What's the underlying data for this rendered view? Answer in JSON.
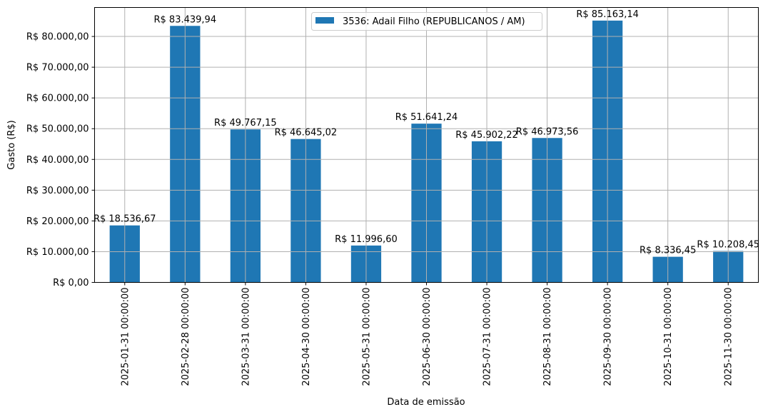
{
  "chart_data": {
    "type": "bar",
    "xlabel": "Data de emissão",
    "ylabel": "Gasto (R$)",
    "categories": [
      "2025-01-31 00:00:00",
      "2025-02-28 00:00:00",
      "2025-03-31 00:00:00",
      "2025-04-30 00:00:00",
      "2025-05-31 00:00:00",
      "2025-06-30 00:00:00",
      "2025-07-31 00:00:00",
      "2025-08-31 00:00:00",
      "2025-09-30 00:00:00",
      "2025-10-31 00:00:00",
      "2025-11-30 00:00:00"
    ],
    "series": [
      {
        "name": "3536: Adail Filho (REPUBLICANOS / AM)",
        "color": "#1f77b4",
        "values": [
          18536.67,
          83439.94,
          49767.15,
          46645.02,
          11996.6,
          51641.24,
          45902.22,
          46973.56,
          85163.14,
          8336.45,
          10208.45
        ],
        "data_labels": [
          "R$ 18.536,67",
          "R$ 83.439,94",
          "R$ 49.767,15",
          "R$ 46.645,02",
          "R$ 11.996,60",
          "R$ 51.641,24",
          "R$ 45.902,22",
          "R$ 46.973,56",
          "R$ 85.163,14",
          "R$ 8.336,45",
          "R$ 10.208,45"
        ]
      }
    ],
    "yticks": [
      0,
      10000,
      20000,
      30000,
      40000,
      50000,
      60000,
      70000,
      80000
    ],
    "ytick_labels": [
      "R$ 0,00",
      "R$ 10.000,00",
      "R$ 20.000,00",
      "R$ 30.000,00",
      "R$ 40.000,00",
      "R$ 50.000,00",
      "R$ 60.000,00",
      "R$ 70.000,00",
      "R$ 80.000,00"
    ],
    "ylim": [
      0,
      89421
    ],
    "grid": true,
    "legend": "upper-center"
  }
}
